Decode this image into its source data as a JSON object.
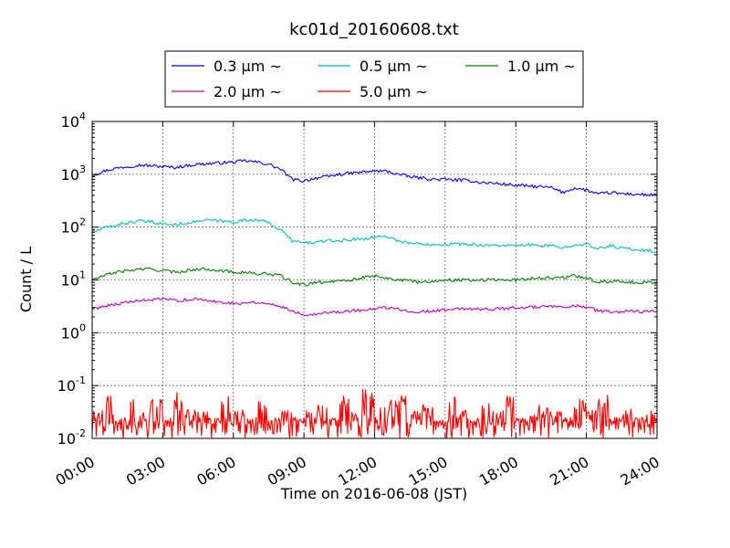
{
  "chart_data": {
    "type": "line",
    "title": "kc01d_20160608.txt",
    "xlabel": "Time on 2016-06-08 (JST)",
    "ylabel": "Count / L",
    "yscale": "log",
    "ylim": [
      0.01,
      10000
    ],
    "xlim": [
      "2016-06-08 00:00",
      "2016-06-09 00:00"
    ],
    "grid": true,
    "legend_position": "top",
    "x_ticks": [
      "00:00",
      "03:00",
      "06:00",
      "09:00",
      "12:00",
      "15:00",
      "18:00",
      "21:00",
      "24:00"
    ],
    "y_ticks": [
      {
        "value": 0.01,
        "base": "10",
        "exp": "-2"
      },
      {
        "value": 0.1,
        "base": "10",
        "exp": "-1"
      },
      {
        "value": 1,
        "base": "10",
        "exp": "0"
      },
      {
        "value": 10,
        "base": "10",
        "exp": "1"
      },
      {
        "value": 100,
        "base": "10",
        "exp": "2"
      },
      {
        "value": 1000,
        "base": "10",
        "exp": "3"
      },
      {
        "value": 10000,
        "base": "10",
        "exp": "4"
      }
    ],
    "x": [
      "00:00",
      "00:30",
      "01:00",
      "01:30",
      "02:00",
      "02:30",
      "03:00",
      "03:30",
      "04:00",
      "04:30",
      "05:00",
      "05:30",
      "06:00",
      "06:30",
      "07:00",
      "07:30",
      "08:00",
      "08:30",
      "09:00",
      "09:30",
      "10:00",
      "10:30",
      "11:00",
      "11:30",
      "12:00",
      "12:30",
      "13:00",
      "13:30",
      "14:00",
      "14:30",
      "15:00",
      "15:30",
      "16:00",
      "16:30",
      "17:00",
      "17:30",
      "18:00",
      "18:30",
      "19:00",
      "19:30",
      "20:00",
      "20:30",
      "21:00",
      "21:30",
      "22:00",
      "22:30",
      "23:00",
      "23:30",
      "24:00"
    ],
    "series": [
      {
        "name": "0.3 μm ~",
        "color": "#0000ff",
        "values": [
          950,
          1150,
          1300,
          1400,
          1500,
          1450,
          1400,
          1350,
          1450,
          1550,
          1600,
          1650,
          1700,
          1800,
          1700,
          1550,
          1250,
          800,
          750,
          850,
          900,
          1000,
          1050,
          1100,
          1150,
          1150,
          1000,
          900,
          850,
          800,
          800,
          780,
          760,
          700,
          680,
          650,
          620,
          600,
          580,
          560,
          450,
          550,
          500,
          420,
          450,
          430,
          420,
          410,
          400
        ]
      },
      {
        "name": "0.5 μm ~",
        "color": "#00bfbf",
        "values": [
          80,
          95,
          110,
          120,
          130,
          125,
          115,
          110,
          120,
          130,
          135,
          130,
          125,
          135,
          140,
          120,
          90,
          55,
          50,
          52,
          55,
          55,
          58,
          60,
          65,
          68,
          55,
          50,
          48,
          48,
          47,
          48,
          47,
          46,
          45,
          45,
          44,
          46,
          45,
          44,
          40,
          48,
          47,
          38,
          45,
          40,
          38,
          36,
          35
        ]
      },
      {
        "name": "1.0 μm ~",
        "color": "#008000",
        "values": [
          10,
          12,
          14,
          15,
          16,
          16,
          15,
          14,
          15,
          16,
          16,
          15,
          14,
          14,
          13,
          13,
          12,
          9,
          8,
          9,
          9,
          10,
          10,
          11,
          12,
          11,
          10,
          9.5,
          9,
          9.5,
          10,
          10,
          10,
          10,
          10,
          10,
          10,
          10.5,
          11,
          11,
          11,
          12,
          11,
          9,
          9.5,
          9.5,
          9,
          9,
          9
        ]
      },
      {
        "name": "2.0 μm ~",
        "color": "#bf00bf",
        "values": [
          2.8,
          3.2,
          3.5,
          3.8,
          4,
          4.2,
          4.3,
          4.1,
          4.2,
          4.3,
          4,
          3.8,
          3.6,
          3.7,
          3.8,
          3.5,
          3.2,
          2.6,
          2.2,
          2.3,
          2.4,
          2.5,
          2.6,
          2.7,
          2.8,
          3,
          2.8,
          2.6,
          2.5,
          2.6,
          2.7,
          2.8,
          2.9,
          2.8,
          2.8,
          2.9,
          3,
          3,
          3.1,
          3.1,
          3,
          3.2,
          3.1,
          2.6,
          2.5,
          2.5,
          2.6,
          2.5,
          2.5
        ]
      },
      {
        "name": "5.0 μm ~",
        "color": "#ff0000",
        "values": [
          0.03,
          0.06,
          0.02,
          0.08,
          0.03,
          0.05,
          0.02,
          0.07,
          0.03,
          0.04,
          0.02,
          0.06,
          0.03,
          0.02,
          0.05,
          0.02,
          0.03,
          0.02,
          0.03,
          0.04,
          0.02,
          0.06,
          0.03,
          0.08,
          0.04,
          0.05,
          0.07,
          0.03,
          0.04,
          0.02,
          0.06,
          0.03,
          0.02,
          0.05,
          0.03,
          0.06,
          0.02,
          0.03,
          0.04,
          0.03,
          0.02,
          0.05,
          0.03,
          0.06,
          0.02,
          0.04,
          0.02,
          0.03,
          0.02
        ]
      }
    ]
  }
}
